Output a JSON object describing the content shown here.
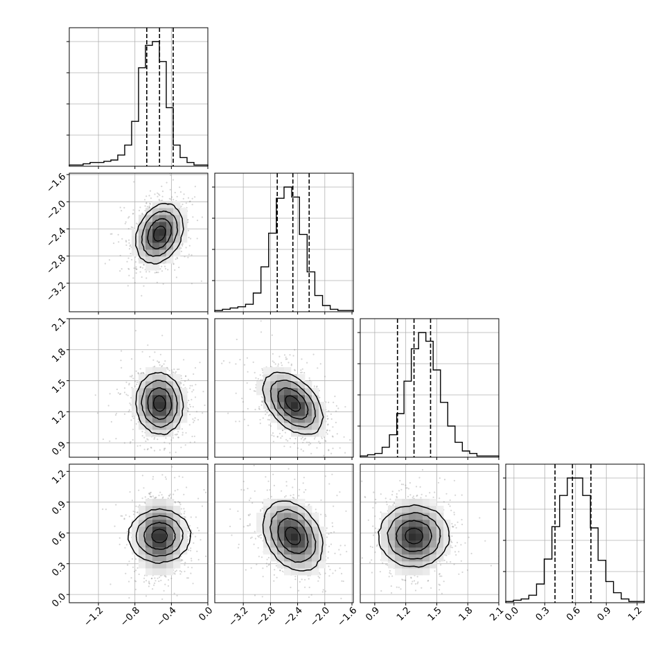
{
  "chart_data": {
    "type": "corner",
    "n_params": 4,
    "background": "#ffffff",
    "scatter_color": "#888888",
    "contour_color": "#000000",
    "hist_color": "#000000",
    "grid": true,
    "params": [
      {
        "range": [
          -1.52,
          0.0
        ],
        "ticks": [
          "-1.2",
          "-0.8",
          "-0.4",
          "0.0"
        ],
        "tick_values": [
          -1.2,
          -0.8,
          -0.4,
          0.0
        ],
        "quantiles": [
          -0.67,
          -0.53,
          -0.38
        ],
        "mean": -0.53,
        "sd": 0.13
      },
      {
        "range": [
          -3.62,
          -1.58
        ],
        "ticks": [
          "-3.2",
          "-2.8",
          "-2.4",
          "-2.0",
          "-1.6"
        ],
        "tick_values": [
          -3.2,
          -2.8,
          -2.4,
          -2.0,
          -1.6
        ],
        "quantiles": [
          -2.7,
          -2.47,
          -2.23
        ],
        "mean": -2.47,
        "sd": 0.22
      },
      {
        "range": [
          0.76,
          2.1
        ],
        "ticks": [
          "0.9",
          "1.2",
          "1.5",
          "1.8",
          "2.1"
        ],
        "tick_values": [
          0.9,
          1.2,
          1.5,
          1.8,
          2.1
        ],
        "quantiles": [
          1.12,
          1.28,
          1.44
        ],
        "mean": 1.28,
        "sd": 0.15
      },
      {
        "range": [
          -0.08,
          1.27
        ],
        "ticks": [
          "0.0",
          "0.3",
          "0.6",
          "0.9",
          "1.2"
        ],
        "tick_values": [
          0.0,
          0.3,
          0.6,
          0.9,
          1.2
        ],
        "quantiles": [
          0.4,
          0.57,
          0.75
        ],
        "mean": 0.57,
        "sd": 0.17
      }
    ],
    "correlations": {
      "1-0": 0.25,
      "2-0": -0.05,
      "2-1": -0.45,
      "3-0": 0.0,
      "3-1": -0.3,
      "3-2": 0.0
    },
    "contour_levels_sigma": [
      0.5,
      1.0,
      1.5,
      2.0
    ],
    "histograms": [
      [
        1,
        1,
        2,
        3,
        3,
        4,
        5,
        9,
        17,
        36,
        79,
        97,
        100,
        84,
        47,
        17,
        7,
        3,
        1,
        1
      ],
      [
        1,
        2,
        3,
        4,
        6,
        15,
        36,
        63,
        91,
        100,
        92,
        62,
        32,
        13,
        5,
        2,
        1,
        1
      ],
      [
        1,
        2,
        3,
        8,
        18,
        35,
        61,
        87,
        100,
        93,
        70,
        44,
        25,
        12,
        5,
        3,
        1,
        1,
        1
      ],
      [
        1,
        2,
        3,
        6,
        15,
        35,
        61,
        86,
        100,
        100,
        86,
        60,
        34,
        17,
        8,
        3,
        1,
        1
      ]
    ]
  }
}
